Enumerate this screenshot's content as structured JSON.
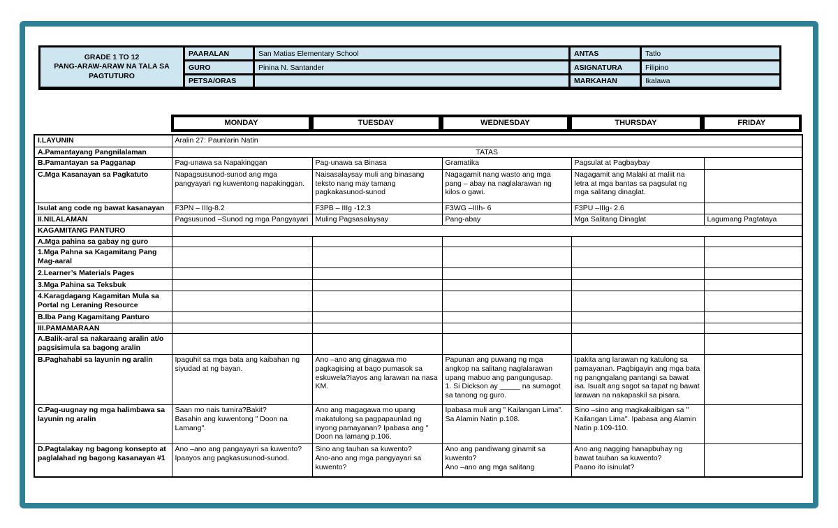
{
  "colors": {
    "frame_teal": "#2d8096",
    "header_cell_bg": "#cde6f0",
    "table_border": "#000000"
  },
  "doc_header": {
    "title_line1": "GRADE 1 TO 12",
    "title_line2": "PANG-ARAW-ARAW NA TALA SA PAGTUTURO",
    "left_fields": [
      {
        "label": "PAARALAN",
        "value": "San Matias Elementary School"
      },
      {
        "label": "GURO",
        "value": "Pinina N. Santander"
      },
      {
        "label": "PETSA/ORAS",
        "value": ""
      }
    ],
    "right_fields": [
      {
        "label": "ANTAS",
        "value": "Tatlo"
      },
      {
        "label": "ASIGNATURA",
        "value": "Filipino"
      },
      {
        "label": "MARKAHAN",
        "value": "Ikalawa"
      }
    ]
  },
  "days_header": [
    "MONDAY",
    "TUESDAY",
    "WEDNESDAY",
    "THURSDAY",
    "FRIDAY"
  ],
  "table": {
    "rows": [
      {
        "label": "I.LAYUNIN",
        "span_value": "Aralin 27: Paunlarin Natin",
        "center": false
      },
      {
        "label": "A.Pamantayang Pangnilalaman",
        "span_value": "TATAS",
        "center": true
      },
      {
        "label": "B.Pamantayan sa Pagganap",
        "cells": [
          "Pag-unawa sa Napakinggan",
          "Pag-unawa sa Binasa",
          "Gramatika",
          "Pagsulat at Pagbaybay",
          ""
        ]
      },
      {
        "label": "C.Mga Kasanayan sa Pagkatuto",
        "cells": [
          "Napagsusunod-sunod ang mga pangyayari ng kuwentong napakinggan.",
          "Naisasalaysay muli ang binasang teksto nang may tamang pagkakasunod-sunod",
          "Nagagamit nang wasto ang mga pang – abay na naglalarawan ng kilos o gawi.",
          "Nagagamit ang Malaki at maliit na letra at mga bantas sa pagsulat ng mga salitang dinaglat.",
          ""
        ]
      },
      {
        "label": "Isulat ang code ng bawat kasanayan",
        "cells": [
          "F3PN – IIIg-8.2",
          "F3PB – IIIg -12.3",
          "F3WG –IIIh- 6",
          "F3PU –IIIg- 2.6",
          ""
        ]
      },
      {
        "label": "II.NILALAMAN",
        "cells": [
          "Pagsusunod –Sunod ng mga Pangyayari",
          "Muling Pagsasalaysay",
          "Pang-abay",
          "Mga Salitang Dinaglat",
          "Lagumang Pagtataya"
        ]
      },
      {
        "label": "KAGAMITANG PANTURO",
        "span_value": "",
        "center": false
      },
      {
        "label": "A.Mga pahina sa gabay ng guro",
        "cells": [
          "",
          "",
          "",
          "",
          ""
        ]
      },
      {
        "label": "1.Mga Pahna sa Kagamitang Pang Mag-aaral",
        "cells": [
          "",
          "",
          "",
          "",
          ""
        ]
      },
      {
        "label": "2.Learner’s Materials Pages",
        "cells": [
          "",
          "",
          "",
          "",
          ""
        ]
      },
      {
        "label": "3.Mga Pahina sa Teksbuk",
        "cells": [
          "",
          "",
          "",
          "",
          ""
        ]
      },
      {
        "label": "4.Karagdagang Kagamitan Mula sa Portal ng Leraning Resource",
        "cells": [
          "",
          "",
          "",
          "",
          ""
        ]
      },
      {
        "label": "B.Iba Pang Kagamitang Panturo",
        "cells": [
          "",
          "",
          "",
          "",
          ""
        ]
      },
      {
        "label": "III.PAMAMARAAN",
        "cells": [
          "",
          "",
          "",
          "",
          ""
        ]
      },
      {
        "label": "A.Balik-aral sa nakaraang aralin  at/o pagsisimula sa bagong aralin",
        "cells": [
          "",
          "",
          "",
          "",
          ""
        ]
      },
      {
        "label": "B.Paghahabi sa layunin ng aralin",
        "cells": [
          "Ipaguhit sa mga bata ang kaibahan ng siyudad at ng bayan.",
          "Ano –ano ang ginagawa mo pagkagising at bago pumasok sa eskuwela?Iayos ang larawan na nasa KM.",
          "Papunan ang puwang ng mga angkop na salitang naglalarawan upang mabuo ang pangungusap.\n1. Si Dickson ay _____ na sumagot sa tanong ng guro.",
          "Ipakita ang larawan ng katulong sa pamayanan. Pagbigayin ang mga bata ng pangngalang pantangi sa bawat isa. Isualt ang sagot sa tapat ng bawat larawan na nakapaskil sa pisara.",
          ""
        ]
      },
      {
        "label": "C.Pag-uugnay ng mga halimbawa sa layunin ng aralin",
        "cells": [
          "Saan mo nais tumira?Bakit?\nBasahin ang kuwentong \" Doon na Lamang\".",
          "Ano ang magagawa mo upang makatulong sa pagpapaunlad ng inyong pamayanan? Ipabasa ang \" Doon na lamang p.106.",
          "Ipabasa muli ang \" Kailangan Lima\". Sa Alamin Natin p.108.",
          "Sino –sino ang magkakaibigan sa \" Kailangan Lima\". Ipabasa ang Alamin Natin p.109-110.",
          ""
        ]
      },
      {
        "label": "D.Pagtalakay ng bagong konsepto at paglalahad ng bagong kasanayan #1",
        "cells": [
          "Ano –ano ang pangayayri sa kuwento?\nIpaayos ang pagkasusunod-sunod.",
          "Sino ang tauhan sa kuwento?\nAno-ano ang mga pangyayari sa kuwento?",
          "Ano ang pandiwang ginamit sa kuwento?\nAno –ano ang mga salitang",
          "Ano ang nagging hanapbuhay ng bawat tauhan sa kuwento?\nPaano ito isinulat?",
          ""
        ]
      }
    ]
  }
}
